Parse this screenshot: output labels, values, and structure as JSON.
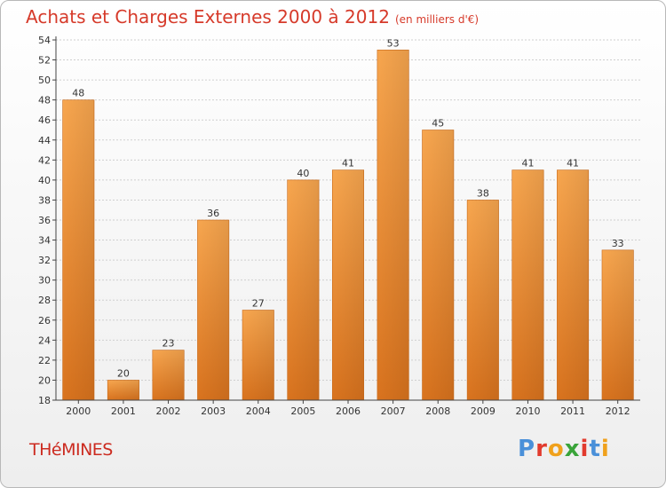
{
  "header": {
    "title": "Achats et Charges Externes 2000 à 2012",
    "unit": "(en milliers d'€)"
  },
  "footer": {
    "city": "THéMINES",
    "logo_letters": [
      "P",
      "r",
      "o",
      "x",
      "i",
      "t",
      "i"
    ],
    "logo_colors": [
      "#4a90d9",
      "#e23b2e",
      "#f0a11c",
      "#3aa43a",
      "#e23b2e",
      "#4a90d9",
      "#f0a11c"
    ]
  },
  "colors": {
    "bar_light": "#f7a64f",
    "bar_dark": "#d9731e",
    "grid": "#cfcfcf",
    "axis": "#444444"
  },
  "chart_data": {
    "type": "bar",
    "title": "Achats et Charges Externes 2000 à 2012",
    "subtitle": "(en milliers d'€)",
    "categories": [
      "2000",
      "2001",
      "2002",
      "2003",
      "2004",
      "2005",
      "2006",
      "2007",
      "2008",
      "2009",
      "2010",
      "2011",
      "2012"
    ],
    "values": [
      48,
      20,
      23,
      36,
      27,
      40,
      41,
      53,
      45,
      38,
      41,
      41,
      33
    ],
    "ylim": [
      18,
      54
    ],
    "yticks": [
      18,
      20,
      22,
      24,
      26,
      28,
      30,
      32,
      34,
      36,
      38,
      40,
      42,
      44,
      46,
      48,
      50,
      52,
      54
    ],
    "grid": true
  }
}
